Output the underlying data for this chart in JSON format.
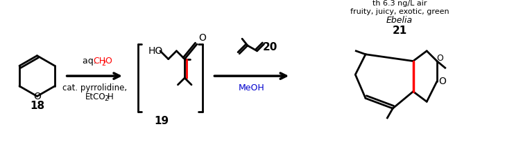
{
  "bg_color": "#ffffff",
  "text_color": "#000000",
  "red_color": "#ff0000",
  "blue_color": "#0000cd",
  "figsize": [
    7.54,
    2.16
  ],
  "dpi": 100,
  "compound18_label": "18",
  "compound19_label": "19",
  "compound20_label": "20",
  "compound21_label": "21",
  "reagent1_line1": "aq. CH",
  "reagent1_ch2o_sub": "2",
  "reagent1_ch2o_end": "O",
  "reagent1_line2": "cat. pyrrolidine,",
  "reagent1_line3": "EtCO",
  "reagent1_etco2h_sub": "2",
  "reagent1_etco2h_end": "H",
  "reagent2_line1": "MeOH",
  "product_name": "Ebelia",
  "product_desc1": "fruity, juicy, exotic, green",
  "product_desc2": "th 6.3 ng/L air"
}
